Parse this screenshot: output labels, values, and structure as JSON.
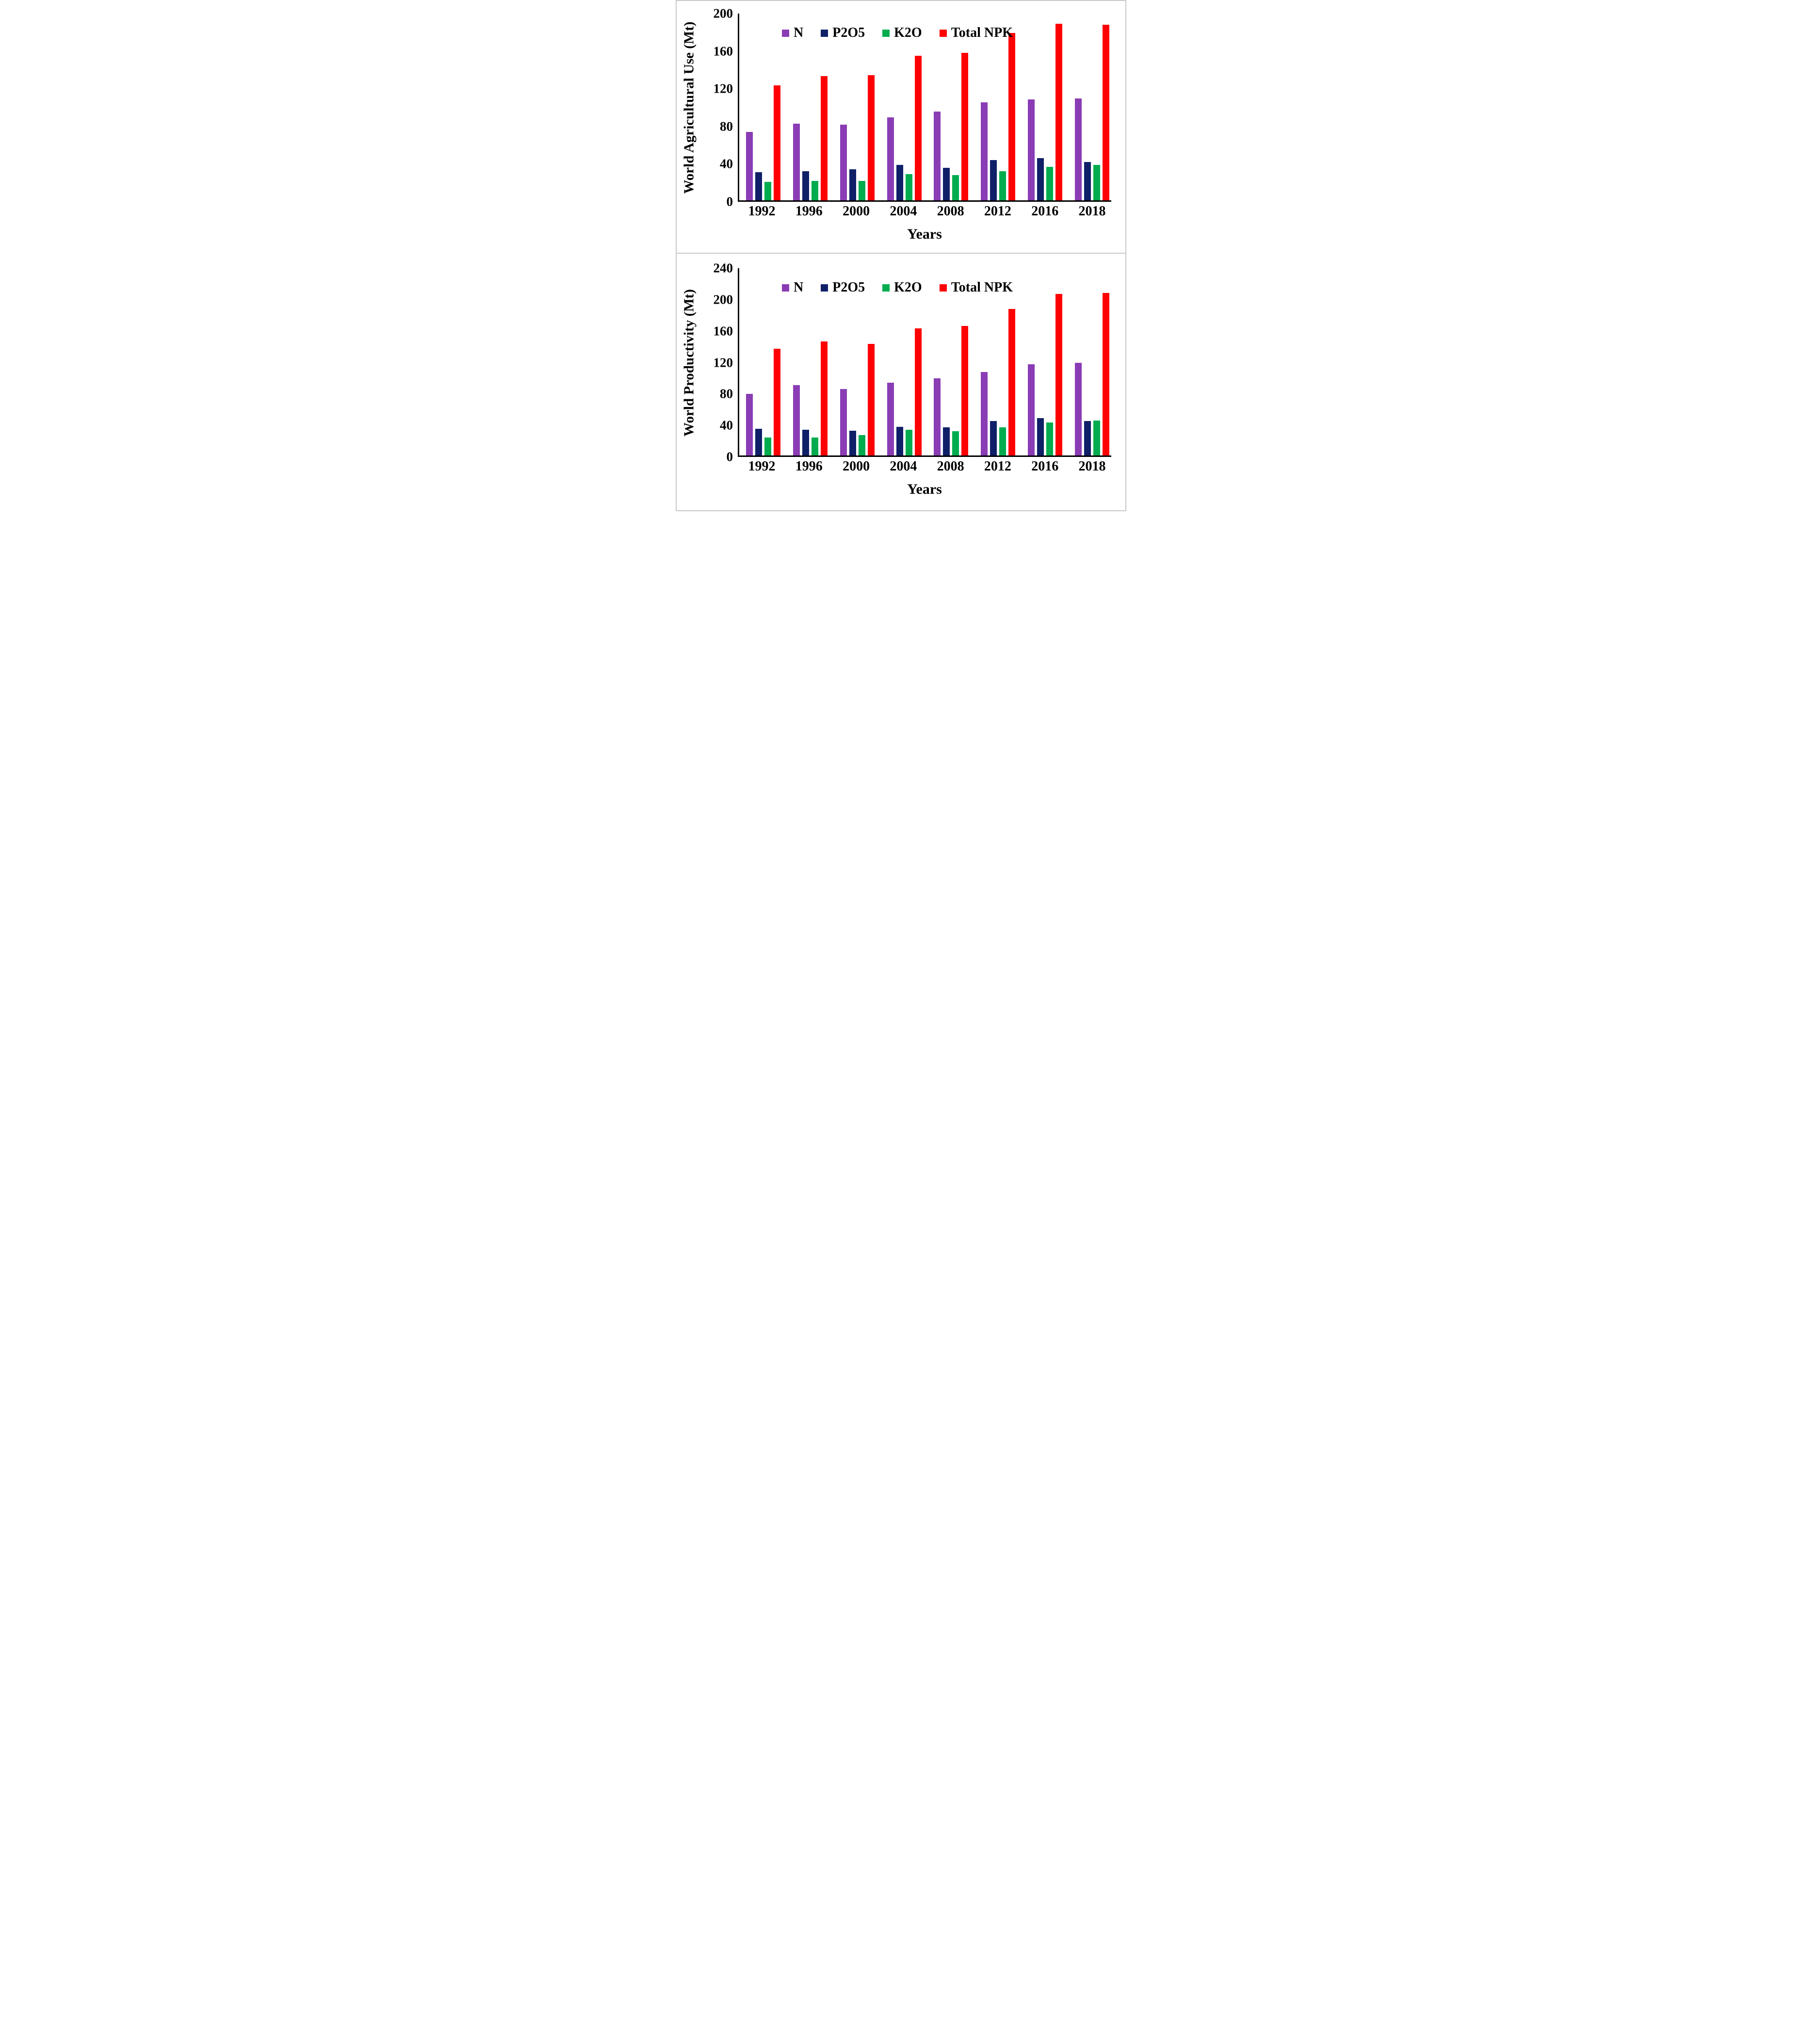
{
  "figure": {
    "background_color": "#ffffff",
    "border_color": "#c9c9c9",
    "axis_color": "#000000"
  },
  "chart_data": [
    {
      "type": "bar",
      "title": "",
      "ylabel": "World Agricultural Use (Mt)",
      "xlabel": "Years",
      "ylim": [
        0,
        200
      ],
      "yticks": [
        0,
        40,
        80,
        120,
        160,
        200
      ],
      "grid": false,
      "legend_position": "top-center-inside",
      "categories": [
        "1992",
        "1996",
        "2000",
        "2004",
        "2008",
        "2012",
        "2016",
        "2018"
      ],
      "series": [
        {
          "name": "N",
          "color": "#8a3cb5",
          "values": [
            73,
            82,
            81,
            89,
            95,
            105,
            108,
            109
          ]
        },
        {
          "name": "P2O5",
          "color": "#0f2068",
          "values": [
            30,
            31,
            33,
            38,
            35,
            43,
            45,
            41
          ]
        },
        {
          "name": "K2O",
          "color": "#00ac4e",
          "values": [
            20,
            21,
            21,
            28,
            27,
            31,
            36,
            38
          ]
        },
        {
          "name": "Total NPK",
          "color": "#fe0000",
          "values": [
            123,
            133,
            134,
            155,
            158,
            179,
            189,
            188
          ]
        }
      ]
    },
    {
      "type": "bar",
      "title": "",
      "ylabel": "World Productivity (Mt)",
      "xlabel": "Years",
      "ylim": [
        0,
        240
      ],
      "yticks": [
        0,
        40,
        80,
        120,
        160,
        200,
        240
      ],
      "grid": false,
      "legend_position": "top-center-inside",
      "categories": [
        "1992",
        "1996",
        "2000",
        "2004",
        "2008",
        "2012",
        "2016",
        "2018"
      ],
      "series": [
        {
          "name": "N",
          "color": "#8a3cb5",
          "values": [
            79,
            90,
            85,
            93,
            99,
            107,
            117,
            119
          ]
        },
        {
          "name": "P2O5",
          "color": "#0f2068",
          "values": [
            34,
            33,
            32,
            37,
            36,
            44,
            48,
            44
          ]
        },
        {
          "name": "K2O",
          "color": "#00ac4e",
          "values": [
            23,
            23,
            26,
            33,
            31,
            36,
            42,
            45
          ]
        },
        {
          "name": "Total NPK",
          "color": "#fe0000",
          "values": [
            137,
            146,
            143,
            163,
            166,
            188,
            207,
            208
          ]
        }
      ]
    }
  ]
}
